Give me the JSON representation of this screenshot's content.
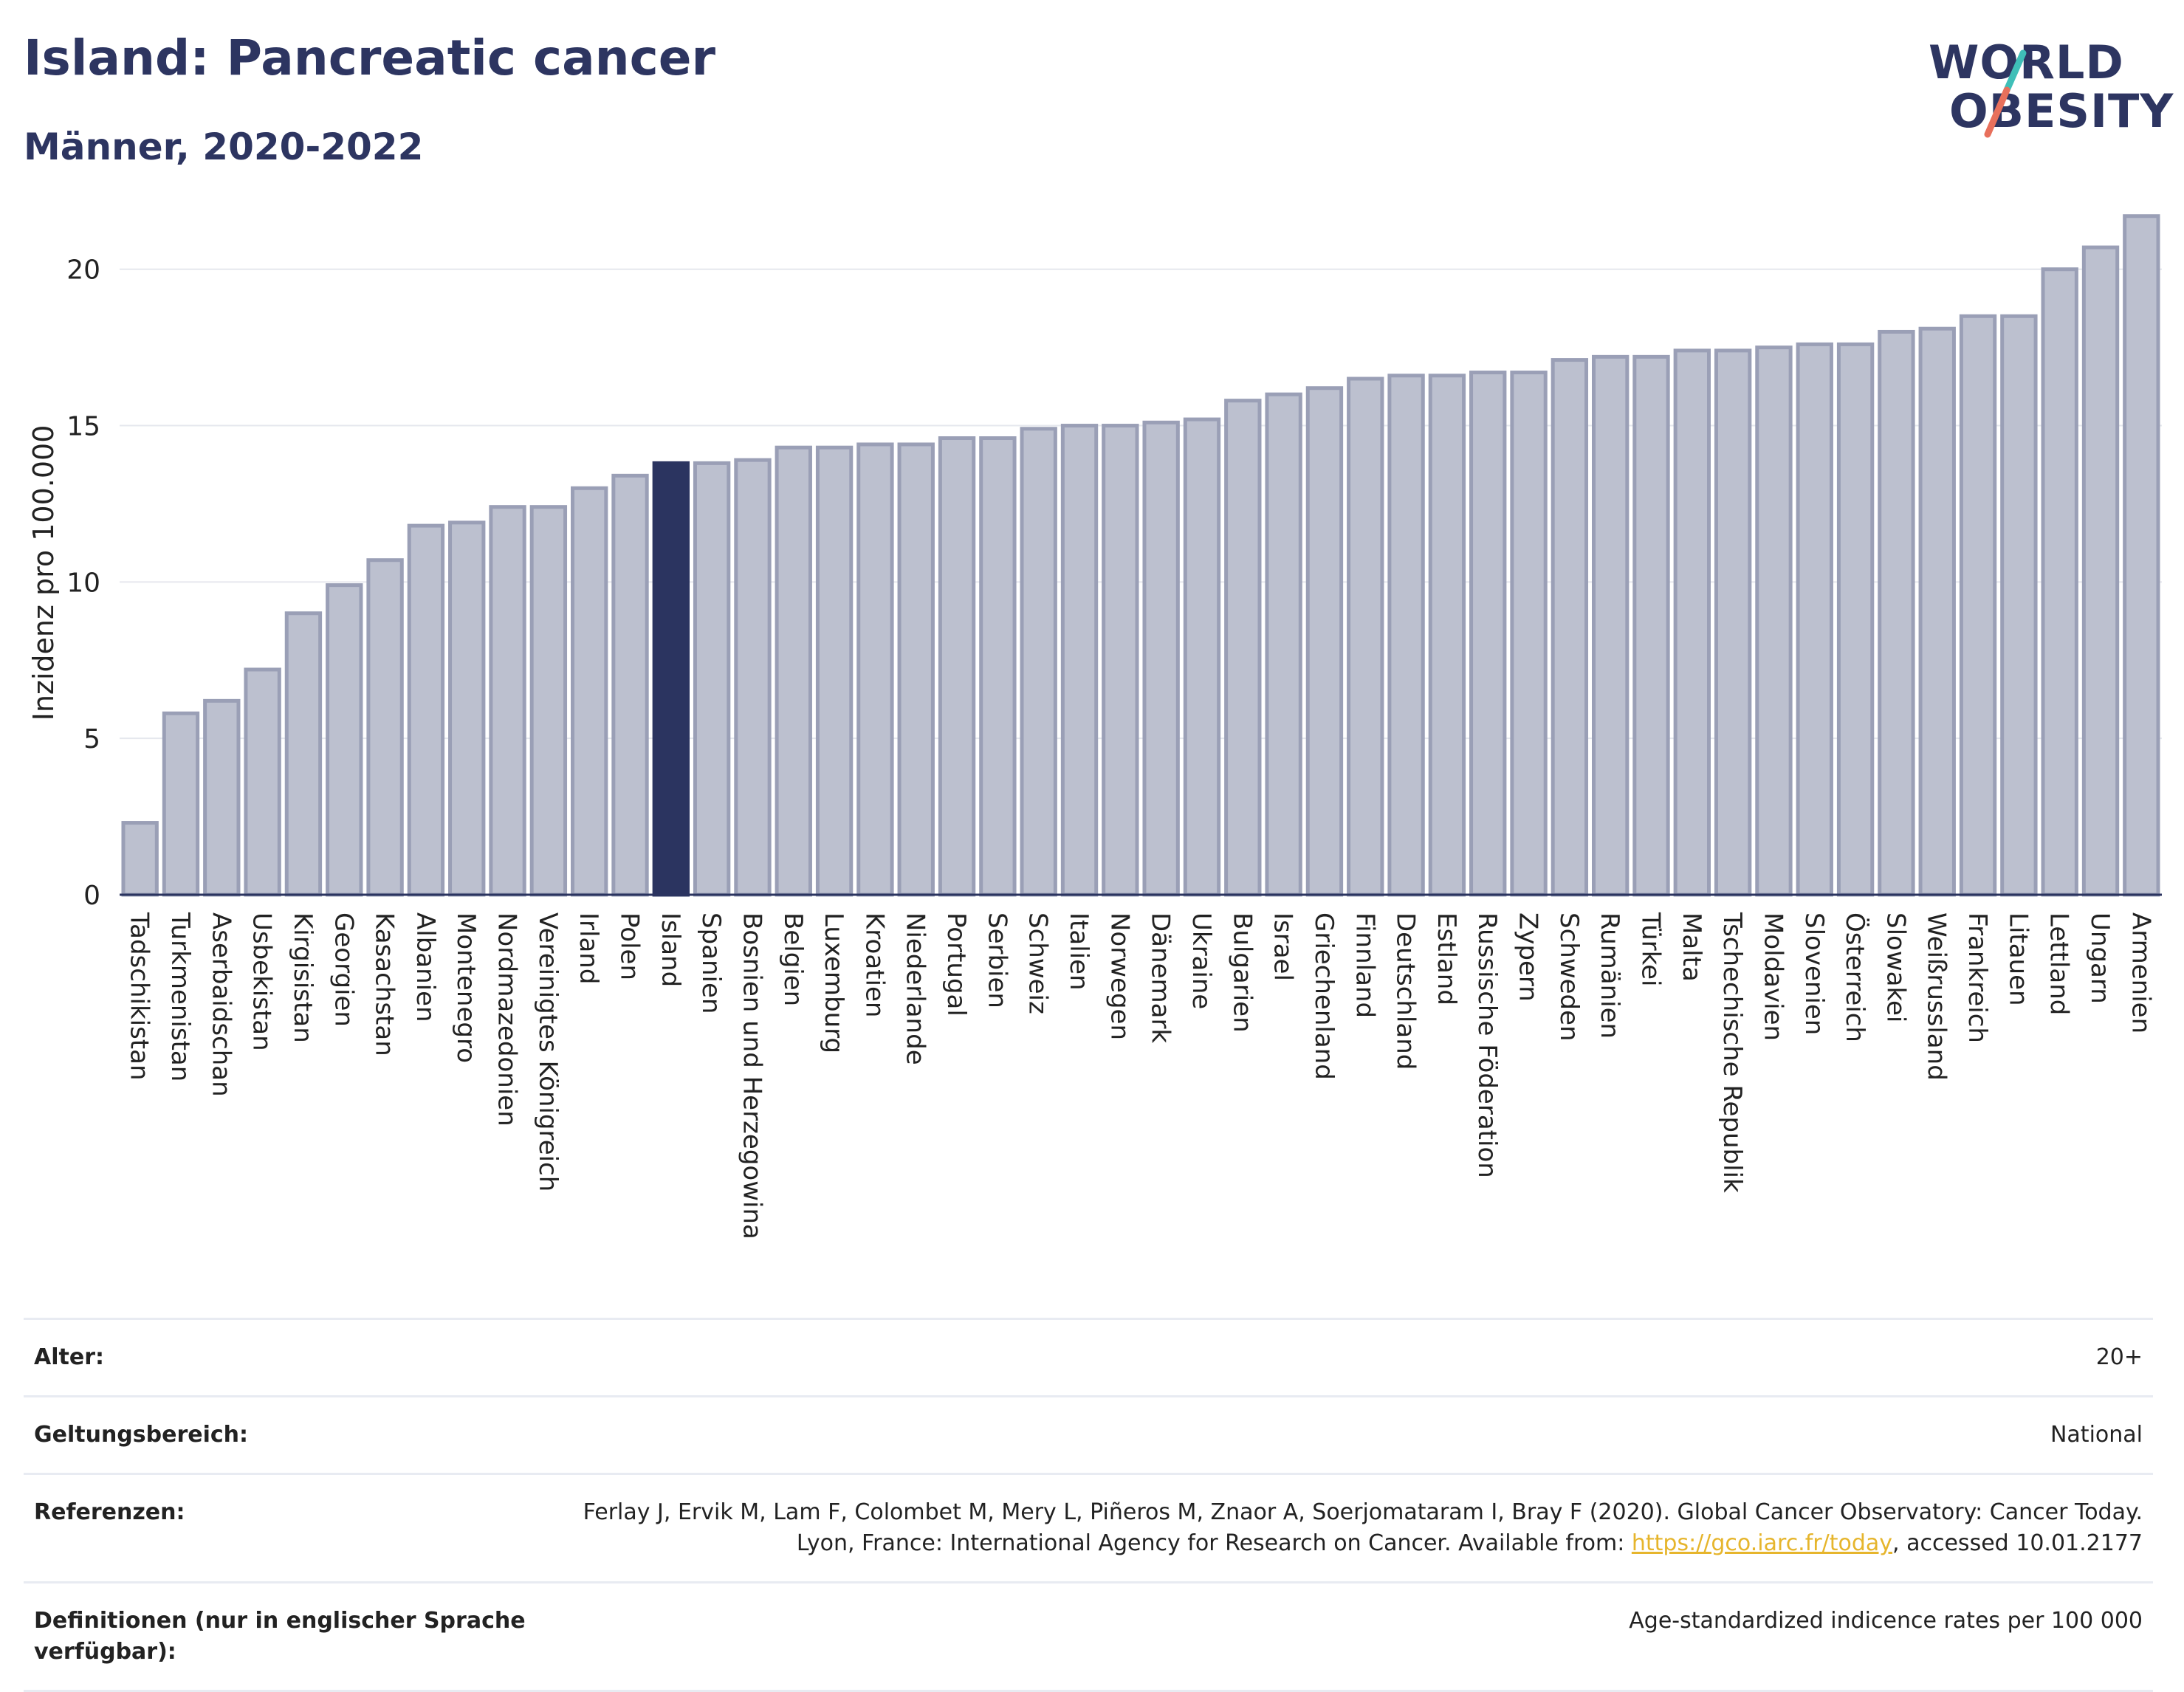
{
  "header": {
    "title": "Island: Pancreatic cancer",
    "subtitle": "Männer, 2020-2022"
  },
  "logo": {
    "line1": "WORLD",
    "line2": "OBESITY",
    "colors": {
      "text": "#2d3561",
      "slash_top": "#3fbfb8",
      "slash_bottom": "#e8705c"
    }
  },
  "chart_data": {
    "type": "bar",
    "ylabel": "Inzidenz pro 100.000",
    "ylim": [
      0,
      22
    ],
    "yticks": [
      0,
      5,
      10,
      15,
      20
    ],
    "grid": true,
    "highlight": "Island",
    "colors": {
      "bar": "#bcc0cf",
      "bar_border": "#9a9fb6",
      "highlight": "#2b3460"
    },
    "categories": [
      "Tadschikistan",
      "Turkmenistan",
      "Aserbaidschan",
      "Usbekistan",
      "Kirgisistan",
      "Georgien",
      "Kasachstan",
      "Albanien",
      "Montenegro",
      "Nordmazedonien",
      "Vereinigtes Königreich",
      "Irland",
      "Polen",
      "Island",
      "Spanien",
      "Bosnien und Herzegowina",
      "Belgien",
      "Luxemburg",
      "Kroatien",
      "Niederlande",
      "Portugal",
      "Serbien",
      "Schweiz",
      "Italien",
      "Norwegen",
      "Dänemark",
      "Ukraine",
      "Bulgarien",
      "Israel",
      "Griechenland",
      "Finnland",
      "Deutschland",
      "Estland",
      "Russische Föderation",
      "Zypern",
      "Schweden",
      "Rumänien",
      "Türkei",
      "Malta",
      "Tschechische Republik",
      "Moldavien",
      "Slovenien",
      "Österreich",
      "Slowakei",
      "Weißrussland",
      "Frankreich",
      "Litauen",
      "Lettland",
      "Ungarn",
      "Armenien"
    ],
    "values": [
      2.3,
      5.8,
      6.2,
      7.2,
      9.0,
      9.9,
      10.7,
      11.8,
      11.9,
      12.4,
      12.4,
      13.0,
      13.4,
      13.8,
      13.8,
      13.9,
      14.3,
      14.3,
      14.4,
      14.4,
      14.6,
      14.6,
      14.9,
      15.0,
      15.0,
      15.1,
      15.2,
      15.8,
      16.0,
      16.2,
      16.5,
      16.6,
      16.6,
      16.7,
      16.7,
      17.1,
      17.2,
      17.2,
      17.4,
      17.4,
      17.5,
      17.6,
      17.6,
      18.0,
      18.1,
      18.5,
      18.5,
      20.0,
      20.7,
      21.7
    ]
  },
  "meta": {
    "age_label": "Alter:",
    "age_value": "20+",
    "scope_label": "Geltungsbereich:",
    "scope_value": "National",
    "ref_label": "Referenzen:",
    "ref_text_before": "Ferlay J, Ervik M, Lam F, Colombet M, Mery L, Piñeros M, Znaor A, Soerjomataram I, Bray F (2020). Global Cancer Observatory: Cancer Today. Lyon, France: International Agency for Research on Cancer. Available from: ",
    "ref_link": "https://gco.iarc.fr/today",
    "ref_text_after": ", accessed 10.01.2177",
    "def_label": "Definitionen (nur in englischer Sprache verfügbar):",
    "def_value": "Age-standardized indicence rates per 100 000"
  }
}
